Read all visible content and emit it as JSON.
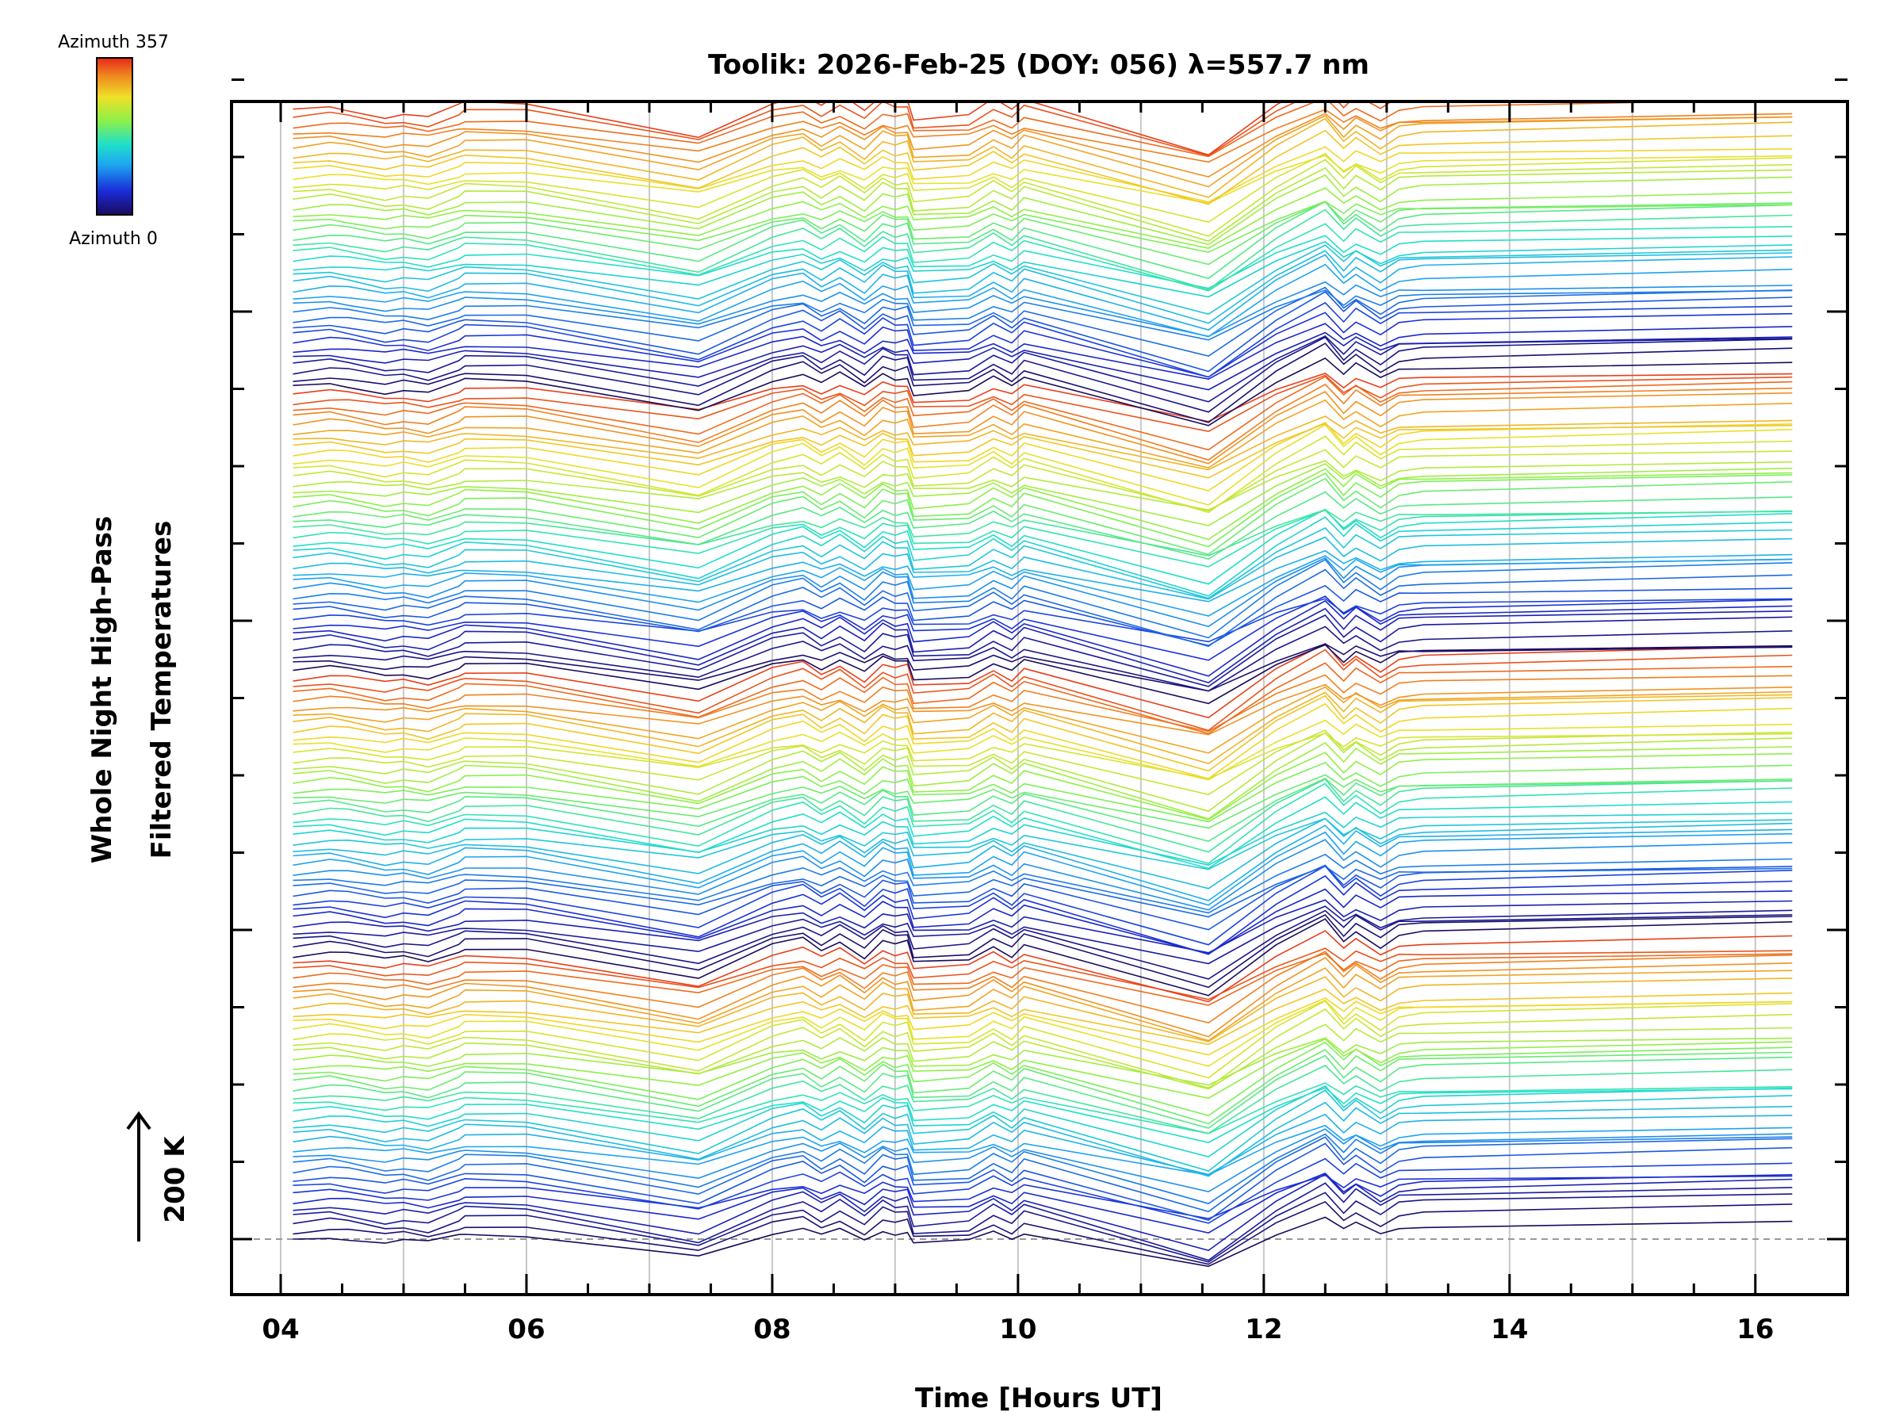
{
  "chart_data": {
    "type": "line",
    "title": "Toolik: 2026-Feb-25 (DOY: 056) λ=557.7 nm",
    "xlabel": "Time [Hours UT]",
    "ylabel_line1": "Whole Night High-Pass",
    "ylabel_line2": "Filtered Temperatures",
    "scale_bar_label": "200 K",
    "scale_bar_kelvin": 200,
    "xlim": [
      3.6,
      16.75
    ],
    "xticks": [
      4,
      6,
      8,
      10,
      12,
      14,
      16
    ],
    "xtick_labels": [
      "04",
      "06",
      "08",
      "10",
      "12",
      "14",
      "16"
    ],
    "y_offset_step_kelvin": 200,
    "y_offsets_count": 16,
    "grid": "vertical at every hour",
    "colorbar": {
      "top_label": "Azimuth 357",
      "bottom_label": "Azimuth 0",
      "min": 0,
      "max": 357,
      "colormap": "rainbow"
    },
    "series_count": 152,
    "series_description": "Stacked high-pass filtered temperature traces, one per azimuth, offset vertically",
    "profile_x": [
      4.1,
      4.4,
      4.55,
      4.85,
      5.0,
      5.2,
      5.45,
      5.5,
      6.0,
      7.4,
      8.0,
      8.25,
      8.4,
      8.55,
      8.75,
      8.9,
      9.0,
      9.1,
      9.15,
      9.6,
      9.8,
      9.95,
      10.05,
      11.55,
      12.1,
      12.5,
      12.65,
      12.75,
      12.95,
      13.1,
      13.3,
      16.3
    ],
    "profile_y": [
      0,
      18,
      8,
      -22,
      -10,
      -28,
      20,
      35,
      30,
      -105,
      40,
      70,
      20,
      65,
      -5,
      68,
      45,
      55,
      -35,
      -20,
      45,
      0,
      50,
      -180,
      35,
      150,
      60,
      110,
      40,
      90,
      100,
      135
    ],
    "colors": {
      "axis": "#000000",
      "grid": "#c8c8c8",
      "baseline": "#999999"
    }
  }
}
